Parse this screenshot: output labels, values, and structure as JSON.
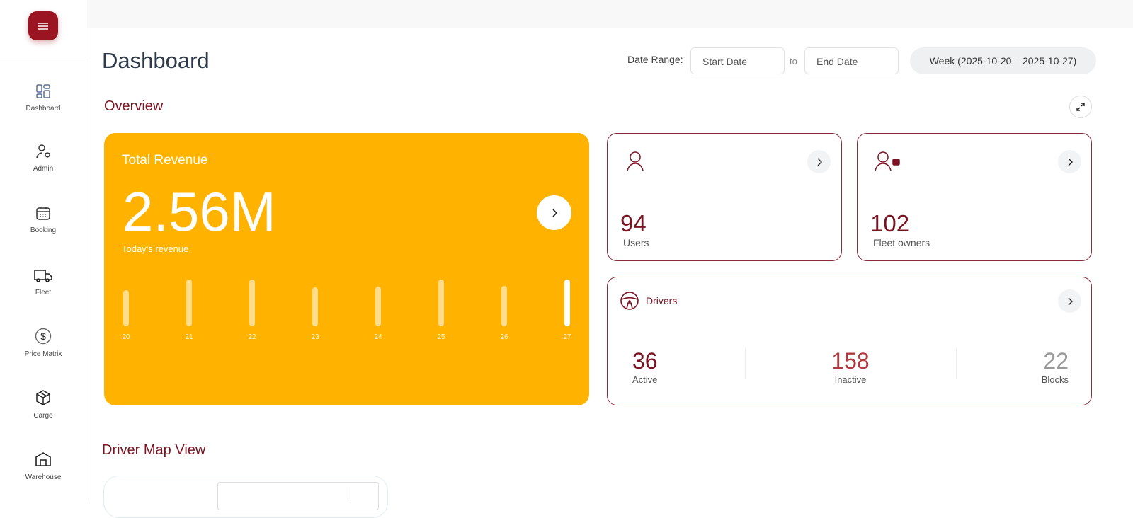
{
  "sidebar": {
    "menu_icon": "hamburger-icon",
    "items": [
      {
        "label": "Dashboard",
        "icon": "dashboard-grid-icon",
        "active": true
      },
      {
        "label": "Admin",
        "icon": "admin-user-shield-icon"
      },
      {
        "label": "Booking",
        "icon": "calendar-icon"
      },
      {
        "label": "Fleet",
        "icon": "truck-icon"
      },
      {
        "label": "Price Matrix",
        "icon": "dollar-circle-icon"
      },
      {
        "label": "Cargo",
        "icon": "box-icon"
      },
      {
        "label": "Warehouse",
        "icon": "warehouse-icon"
      }
    ]
  },
  "header": {
    "title": "Dashboard",
    "date_range_label": "Date Range:",
    "start_placeholder": "Start Date",
    "end_placeholder": "End Date",
    "to": "to",
    "week": "Week (2025-10-20 – 2025-10-27)"
  },
  "overview": {
    "title": "Overview",
    "revenue": {
      "title": "Total Revenue",
      "value": "2.56M",
      "subtitle": "Today's revenue"
    },
    "users": {
      "value": "94",
      "label": "Users"
    },
    "fleet": {
      "value": "102",
      "label": "Fleet owners"
    },
    "drivers": {
      "title": "Drivers",
      "stats": [
        {
          "value": "36",
          "label": "Active",
          "color": "#7a1322"
        },
        {
          "value": "158",
          "label": "Inactive",
          "color": "#b03a3f"
        },
        {
          "value": "22",
          "label": "Blocks",
          "color": "#999999"
        }
      ]
    }
  },
  "colors": {
    "brand": "#9b1422",
    "accent": "#ffb300"
  },
  "chart_data": {
    "type": "bar",
    "categories": [
      "20",
      "21",
      "22",
      "23",
      "24",
      "25",
      "26",
      "27"
    ],
    "values": [
      0.77,
      1,
      1,
      0.83,
      0.85,
      1,
      0.86,
      1
    ],
    "highlight": "27"
  },
  "map": {
    "title": "Driver Map View"
  }
}
